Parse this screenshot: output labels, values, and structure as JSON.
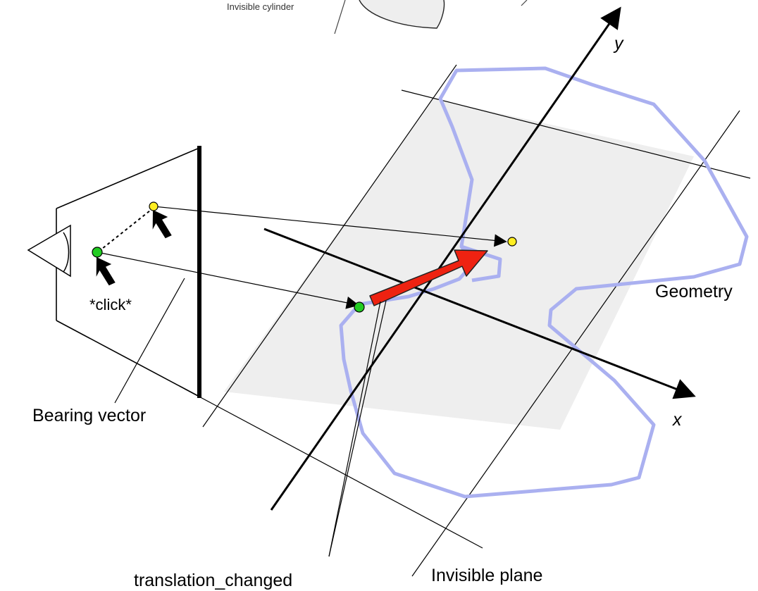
{
  "labels": {
    "invisible_cylinder": "Invisible cylinder",
    "y_axis": "y",
    "x_axis": "x",
    "geometry": "Geometry",
    "click": "*click*",
    "bearing_vector": "Bearing vector",
    "translation_changed": "translation_changed",
    "invisible_plane": "Invisible plane"
  },
  "colors": {
    "plane_fill": "#eeeeee",
    "geometry_outline": "#aab0f0",
    "translation_arrow": "#ee2211",
    "start_point": "#22cc22",
    "end_point": "#ffee22",
    "ink": "#000000"
  }
}
